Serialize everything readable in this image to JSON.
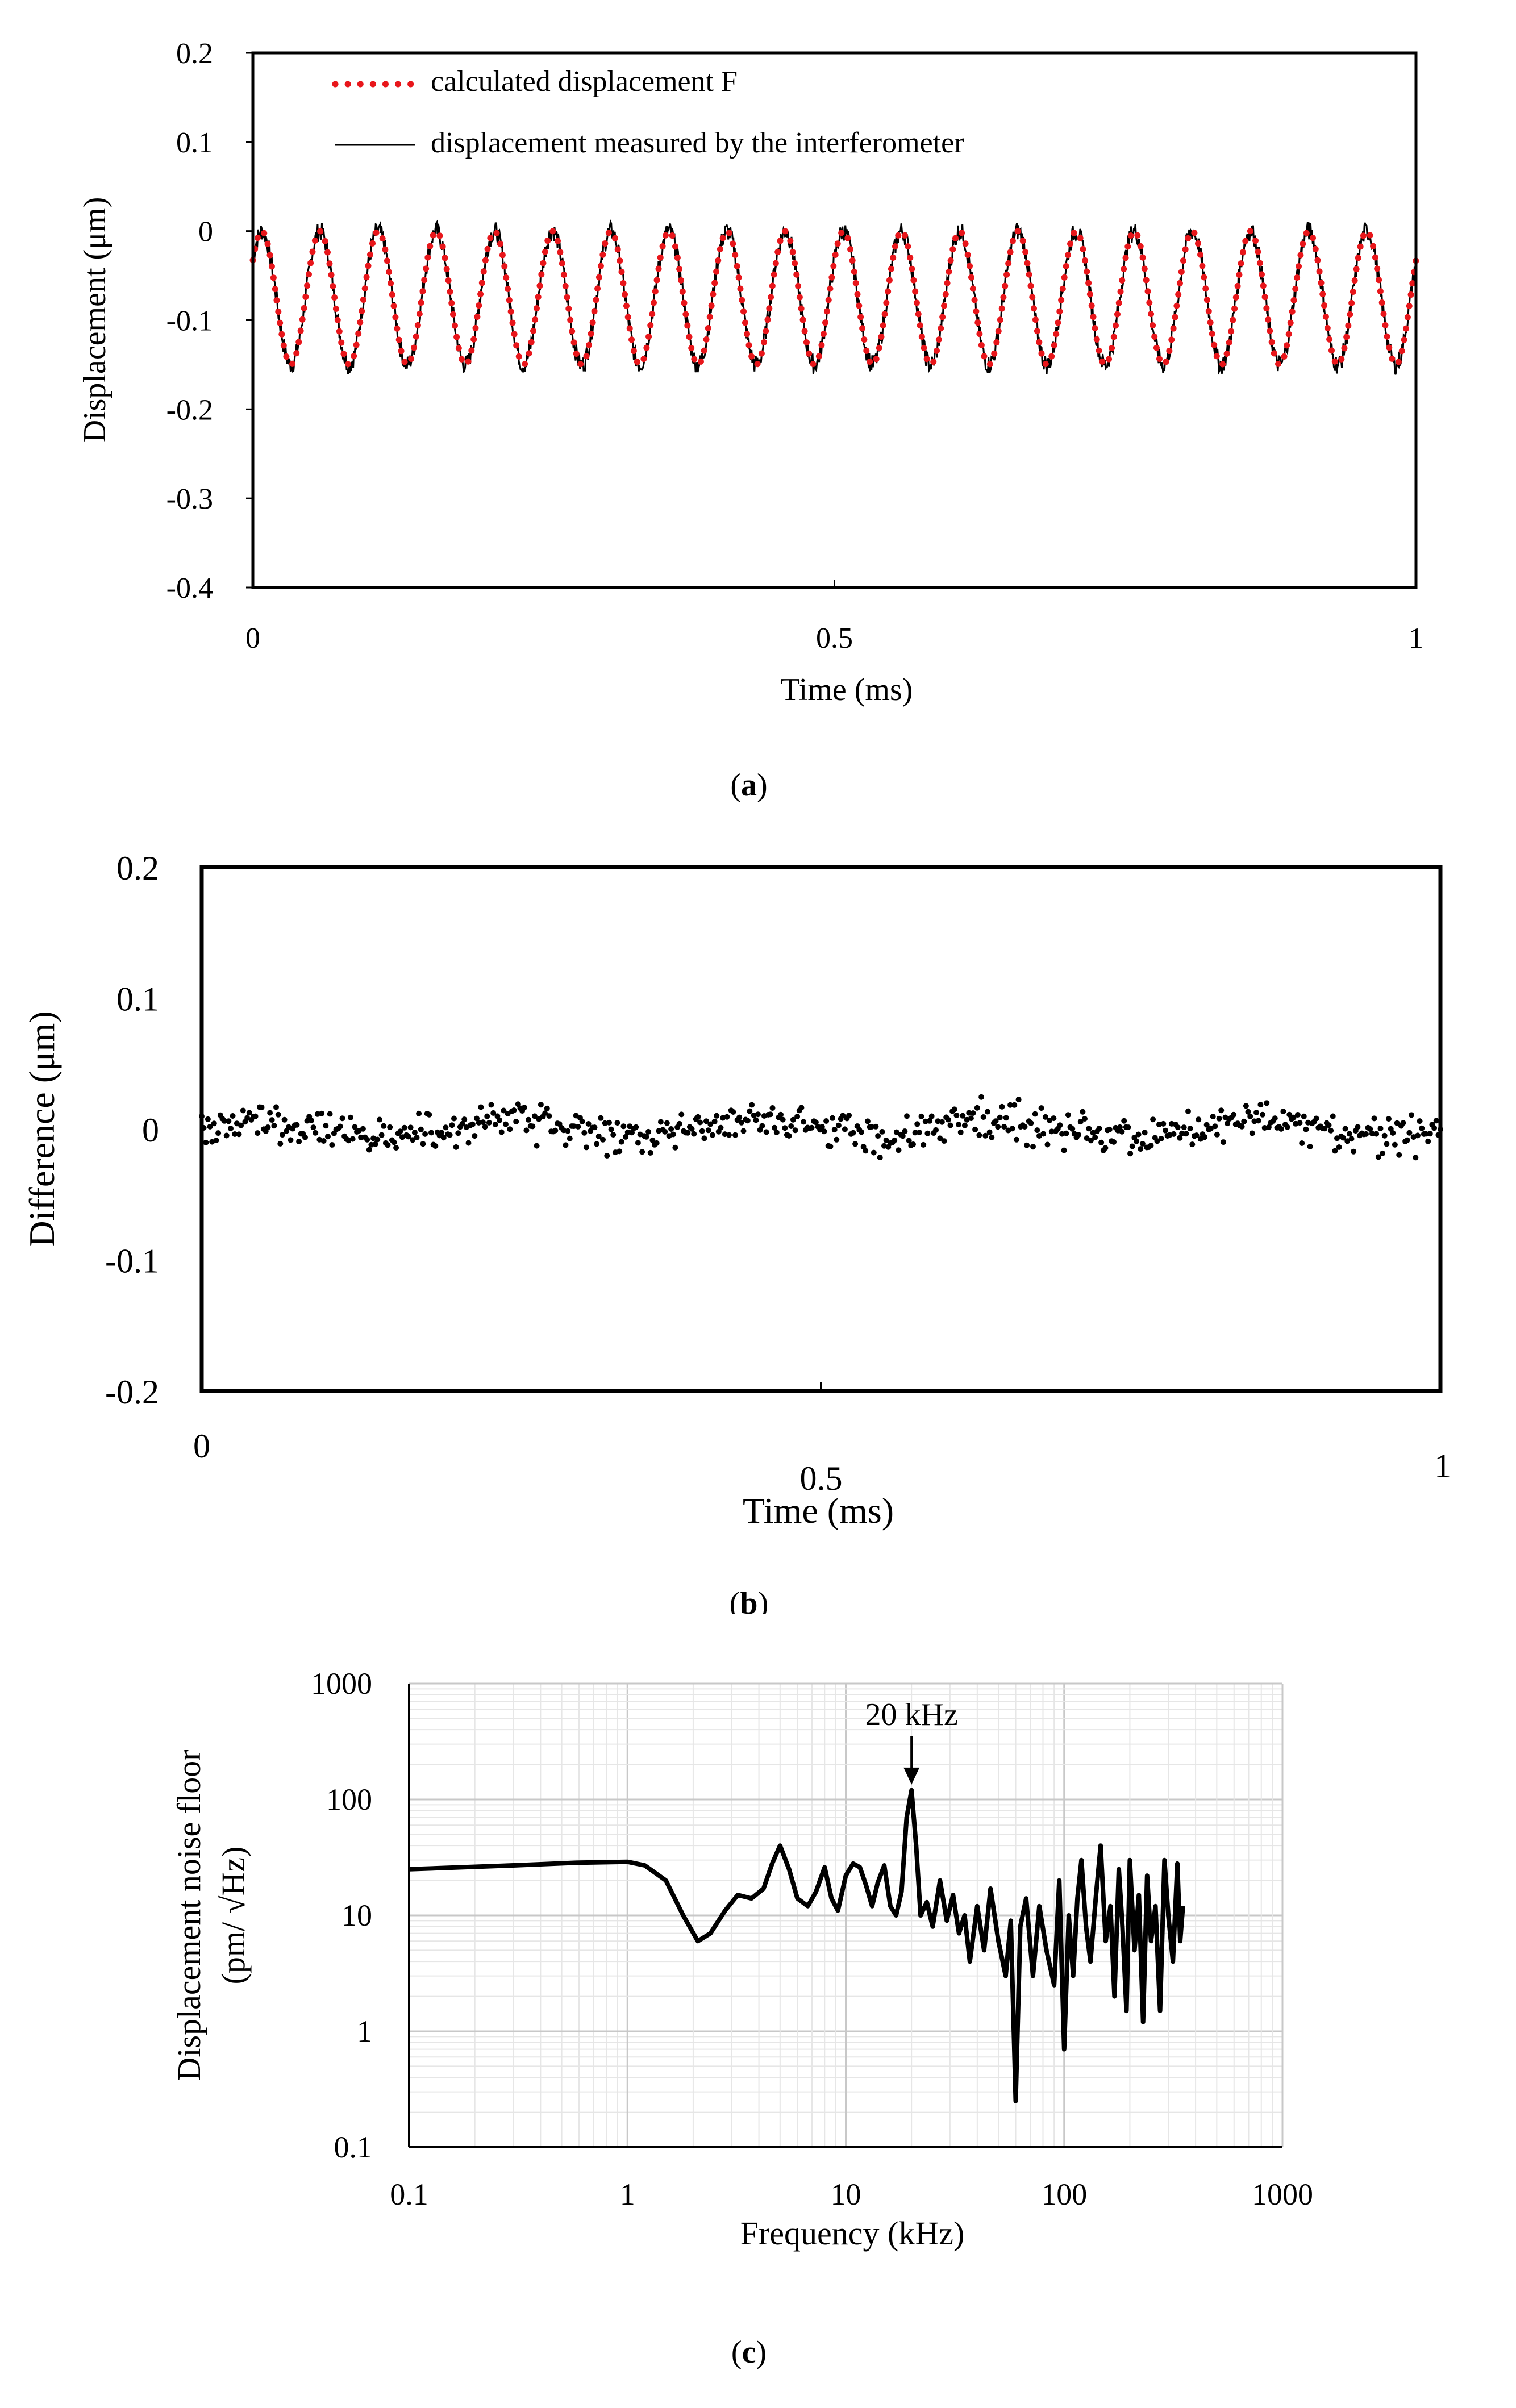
{
  "chart_data": [
    {
      "id": "a",
      "type": "line",
      "panel_label": "a",
      "xlabel": "Time (ms)",
      "ylabel": "Displacement (μm)",
      "xlim": [
        0,
        1
      ],
      "ylim": [
        -0.4,
        0.2
      ],
      "x_ticks": [
        "0",
        "0.5",
        "1"
      ],
      "y_ticks": [
        "0.2",
        "0.1",
        "0",
        "-0.1",
        "-0.2",
        "-0.3",
        "-0.4"
      ],
      "grid": false,
      "legend_position": "top-left",
      "frequency_khz": 20,
      "oscillation": {
        "offset": -0.075,
        "amplitude": 0.075,
        "start_value": -0.09,
        "end_value": -0.05
      },
      "series": [
        {
          "name": "calculated displacement F",
          "style": "dotted",
          "color": "#e8161b"
        },
        {
          "name": "displacement measured by the interferometer",
          "style": "solid",
          "color": "#000000"
        }
      ]
    },
    {
      "id": "b",
      "type": "scatter",
      "panel_label": "b",
      "xlabel": "Time (ms)",
      "ylabel": "Difference (μm)",
      "xlim": [
        0,
        1
      ],
      "ylim": [
        -0.2,
        0.2
      ],
      "x_ticks": [
        "0",
        "0.5",
        "1"
      ],
      "y_ticks": [
        "0.2",
        "0.1",
        "0",
        "-0.1",
        "-0.2"
      ],
      "grid": false,
      "point_count": 600,
      "value_range": [
        -0.03,
        0.03
      ],
      "color": "#000000"
    },
    {
      "id": "c",
      "type": "line",
      "panel_label": "c",
      "xlabel": "Frequency (kHz)",
      "ylabel_line1": "Displacement noise floor",
      "ylabel_line2": "(pm/ √Hz)",
      "x_scale": "log",
      "y_scale": "log",
      "xlim": [
        0.1,
        1000
      ],
      "ylim": [
        0.1,
        1000
      ],
      "x_ticks": [
        "0.1",
        "1",
        "10",
        "100",
        "1000"
      ],
      "y_ticks": [
        "1000",
        "100",
        "10",
        "1",
        "0.1"
      ],
      "grid": true,
      "annotation": {
        "text": "20 kHz",
        "x": 20,
        "y": 120
      },
      "x": [
        0.1,
        0.3,
        0.6,
        1.0,
        1.2,
        1.5,
        1.8,
        2.1,
        2.4,
        2.8,
        3.2,
        3.7,
        4.2,
        4.6,
        5.0,
        5.5,
        6.0,
        6.7,
        7.3,
        8.0,
        8.6,
        9.2,
        10.0,
        10.8,
        11.6,
        12.4,
        13.2,
        14.0,
        15.0,
        16.0,
        17.0,
        18.0,
        19.0,
        20.0,
        21.0,
        22.0,
        23.5,
        25.0,
        27.0,
        29.0,
        31.0,
        33.0,
        35.0,
        37.0,
        40.0,
        43.0,
        46.0,
        50.0,
        54.0,
        57.0,
        60.0,
        63.0,
        67.0,
        72.0,
        77.0,
        83.0,
        90.0,
        95.0,
        100.0,
        105.0,
        110.0,
        115.0,
        120.0,
        126.0,
        132.0,
        140.0,
        147.0,
        155.0,
        163.0,
        170.0,
        178.0,
        185.0,
        193.0,
        200.0,
        210.0,
        220.0,
        230.0,
        240.0,
        250.0,
        262.0,
        275.0,
        288.0,
        300.0,
        315.0,
        330.0,
        340.0,
        350.0
      ],
      "values": [
        25,
        27,
        28.5,
        29,
        27,
        20,
        10,
        6,
        7,
        11,
        15,
        14,
        17,
        28,
        40,
        25,
        14,
        12,
        16,
        26,
        14,
        11,
        22,
        28,
        26,
        18,
        12,
        19,
        27,
        12,
        10,
        16,
        70,
        120,
        40,
        10,
        13,
        8,
        20,
        9,
        15,
        7,
        10,
        4,
        12,
        5,
        17,
        6,
        3,
        9,
        0.25,
        8,
        14,
        3,
        12,
        5,
        2.5,
        20,
        0.7,
        10,
        3,
        14,
        30,
        8,
        4,
        15,
        40,
        6,
        12,
        2,
        25,
        8,
        1.5,
        30,
        5,
        15,
        1.2,
        22,
        6,
        12,
        1.5,
        30,
        10,
        4,
        28,
        6,
        12
      ]
    }
  ]
}
